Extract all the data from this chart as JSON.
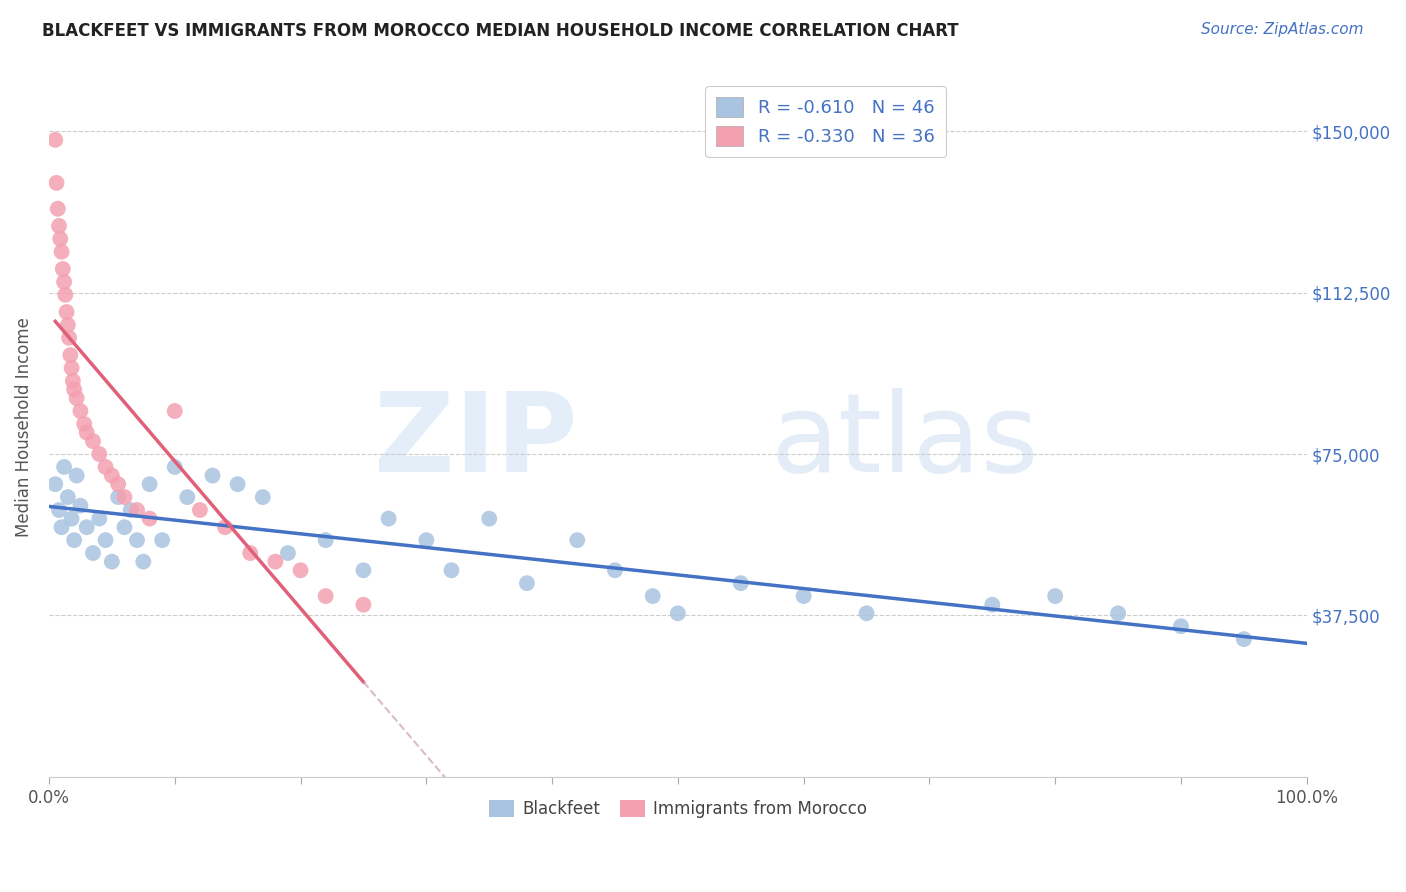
{
  "title": "BLACKFEET VS IMMIGRANTS FROM MOROCCO MEDIAN HOUSEHOLD INCOME CORRELATION CHART",
  "source": "Source: ZipAtlas.com",
  "ylabel": "Median Household Income",
  "xlim": [
    0.0,
    1.0
  ],
  "ylim": [
    0,
    162500
  ],
  "yticks": [
    0,
    37500,
    75000,
    112500,
    150000
  ],
  "ytick_labels": [
    "",
    "$37,500",
    "$75,000",
    "$112,500",
    "$150,000"
  ],
  "blue_color": "#a8c4e0",
  "pink_color": "#f4a0b0",
  "blue_line_color": "#4472c4",
  "pink_line_color": "#e0607a",
  "pink_dash_color": "#c8a0b0",
  "R_blue": -0.61,
  "N_blue": 46,
  "R_pink": -0.33,
  "N_pink": 36,
  "blackfeet_x": [
    0.005,
    0.008,
    0.01,
    0.012,
    0.015,
    0.018,
    0.02,
    0.022,
    0.025,
    0.03,
    0.035,
    0.04,
    0.045,
    0.05,
    0.055,
    0.06,
    0.065,
    0.07,
    0.075,
    0.08,
    0.09,
    0.1,
    0.11,
    0.13,
    0.15,
    0.17,
    0.19,
    0.22,
    0.25,
    0.27,
    0.3,
    0.32,
    0.35,
    0.38,
    0.42,
    0.45,
    0.48,
    0.5,
    0.55,
    0.6,
    0.65,
    0.75,
    0.8,
    0.85,
    0.9,
    0.95
  ],
  "blackfeet_y": [
    68000,
    62000,
    58000,
    72000,
    65000,
    60000,
    55000,
    70000,
    63000,
    58000,
    52000,
    60000,
    55000,
    50000,
    65000,
    58000,
    62000,
    55000,
    50000,
    68000,
    55000,
    72000,
    65000,
    70000,
    68000,
    65000,
    52000,
    55000,
    48000,
    60000,
    55000,
    48000,
    60000,
    45000,
    55000,
    48000,
    42000,
    38000,
    45000,
    42000,
    38000,
    40000,
    42000,
    38000,
    35000,
    32000
  ],
  "morocco_x": [
    0.005,
    0.006,
    0.007,
    0.008,
    0.009,
    0.01,
    0.011,
    0.012,
    0.013,
    0.014,
    0.015,
    0.016,
    0.017,
    0.018,
    0.019,
    0.02,
    0.022,
    0.025,
    0.028,
    0.03,
    0.035,
    0.04,
    0.045,
    0.05,
    0.055,
    0.06,
    0.07,
    0.08,
    0.1,
    0.12,
    0.14,
    0.16,
    0.18,
    0.2,
    0.22,
    0.25
  ],
  "morocco_y": [
    148000,
    138000,
    132000,
    128000,
    125000,
    122000,
    118000,
    115000,
    112000,
    108000,
    105000,
    102000,
    98000,
    95000,
    92000,
    90000,
    88000,
    85000,
    82000,
    80000,
    78000,
    75000,
    72000,
    70000,
    68000,
    65000,
    62000,
    60000,
    85000,
    62000,
    58000,
    52000,
    50000,
    48000,
    42000,
    40000
  ]
}
